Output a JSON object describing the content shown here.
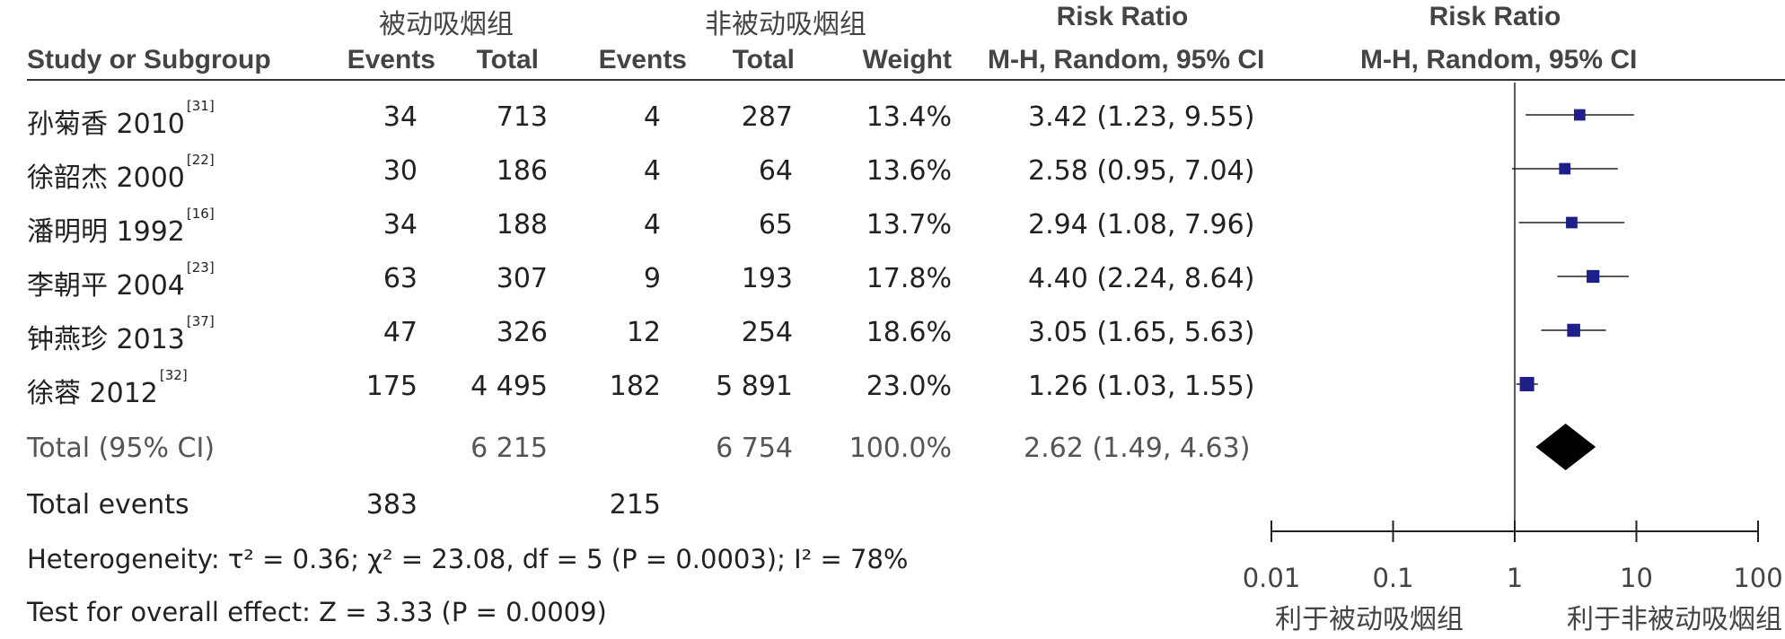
{
  "headers": {
    "group1": "被动吸烟组",
    "group2": "非被动吸烟组",
    "rr_col": "Risk Ratio",
    "rr_plot": "Risk Ratio",
    "study": "Study or Subgroup",
    "events1": "Events",
    "total1": "Total",
    "events2": "Events",
    "total2": "Total",
    "weight": "Weight",
    "method_col": "M-H, Random, 95% CI",
    "method_plot": "M-H, Random, 95% CI"
  },
  "studies": [
    {
      "name": "孙菊香 2010",
      "ref": "[31]",
      "e1": "34",
      "t1": "713",
      "e2": "4",
      "t2": "287",
      "weight": "13.4%",
      "ci_text": "3.42 (1.23, 9.55)"
    },
    {
      "name": "徐韶杰 2000",
      "ref": "[22]",
      "e1": "30",
      "t1": "186",
      "e2": "4",
      "t2": "64",
      "weight": "13.6%",
      "ci_text": "2.58 (0.95, 7.04)"
    },
    {
      "name": "潘明明 1992",
      "ref": "[16]",
      "e1": "34",
      "t1": "188",
      "e2": "4",
      "t2": "65",
      "weight": "13.7%",
      "ci_text": "2.94 (1.08, 7.96)"
    },
    {
      "name": "李朝平 2004",
      "ref": "[23]",
      "e1": "63",
      "t1": "307",
      "e2": "9",
      "t2": "193",
      "weight": "17.8%",
      "ci_text": "4.40 (2.24, 8.64)"
    },
    {
      "name": "钟燕珍 2013",
      "ref": "[37]",
      "e1": "47",
      "t1": "326",
      "e2": "12",
      "t2": "254",
      "weight": "18.6%",
      "ci_text": "3.05 (1.65, 5.63)"
    },
    {
      "name": "徐蓉 2012",
      "ref": "[32]",
      "e1": "175",
      "t1": "4 495",
      "e2": "182",
      "t2": "5 891",
      "weight": "23.0%",
      "ci_text": "1.26 (1.03, 1.55)"
    }
  ],
  "total": {
    "label": "Total (95% CI)",
    "t1": "6 215",
    "t2": "6 754",
    "weight": "100.0%",
    "ci_text": "2.62 (1.49, 4.63)"
  },
  "total_events": {
    "label": "Total events",
    "e1": "383",
    "e2": "215"
  },
  "heterogeneity": "Heterogeneity: τ² = 0.36; χ² = 23.08, df = 5 (P = 0.0003); I² = 78%",
  "overall_effect": "Test for overall effect: Z = 3.33 (P = 0.0009)",
  "axis": {
    "ticks": [
      "0.01",
      "0.1",
      "1",
      "10",
      "100"
    ],
    "favours_left": "利于被动吸烟组",
    "favours_right": "利于非被动吸烟组"
  },
  "colors": {
    "marker": "#1f1f8a",
    "diamond": "#000000",
    "line": "#222222"
  },
  "chart_data": {
    "type": "forest",
    "scale": "log",
    "xlim": [
      0.01,
      100
    ],
    "null_line": 1,
    "studies": [
      {
        "rr": 3.42,
        "lo": 1.23,
        "hi": 9.55,
        "weight": 13.4
      },
      {
        "rr": 2.58,
        "lo": 0.95,
        "hi": 7.04,
        "weight": 13.6
      },
      {
        "rr": 2.94,
        "lo": 1.08,
        "hi": 7.96,
        "weight": 13.7
      },
      {
        "rr": 4.4,
        "lo": 2.24,
        "hi": 8.64,
        "weight": 17.8
      },
      {
        "rr": 3.05,
        "lo": 1.65,
        "hi": 5.63,
        "weight": 18.6
      },
      {
        "rr": 1.26,
        "lo": 1.03,
        "hi": 1.55,
        "weight": 23.0
      }
    ],
    "pooled": {
      "rr": 2.62,
      "lo": 1.49,
      "hi": 4.63
    }
  }
}
